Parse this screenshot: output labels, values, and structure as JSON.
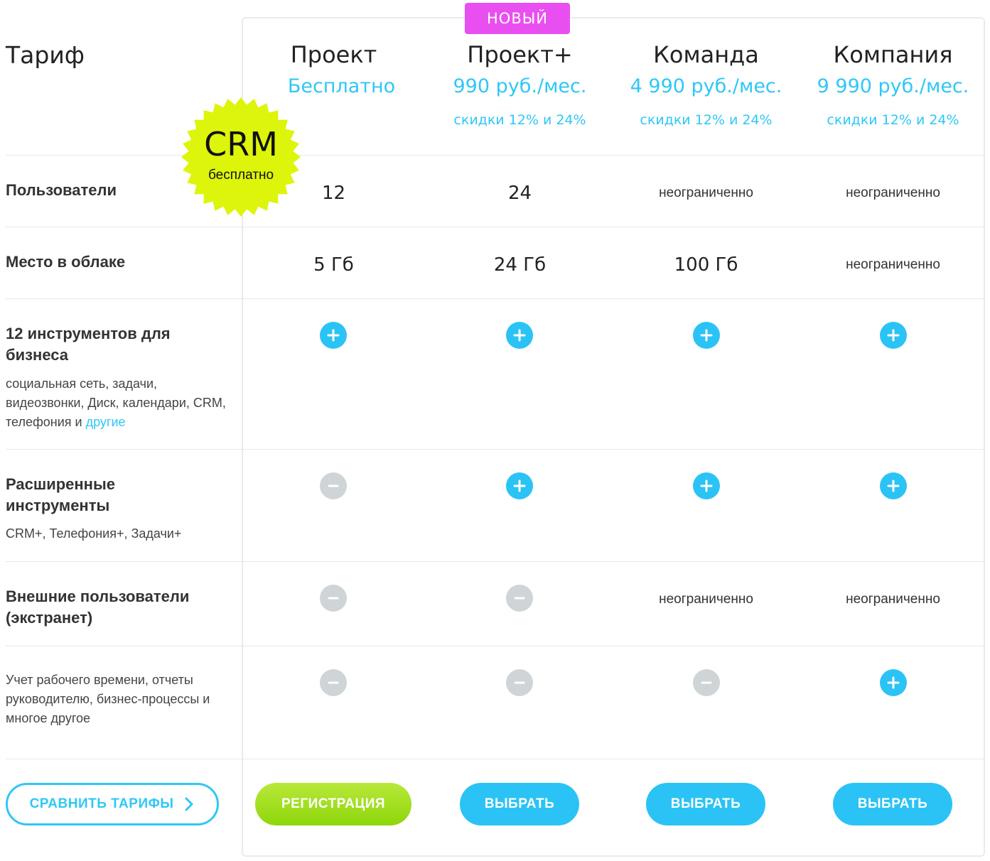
{
  "header": {
    "tariff_label": "Тариф"
  },
  "badges": {
    "new": "НОВЫЙ",
    "crm_title": "CRM",
    "crm_sub": "бесплатно",
    "crm_color": "#ddf50a"
  },
  "plans": [
    {
      "name": "Проект",
      "price": "Бесплатно",
      "discount": ""
    },
    {
      "name": "Проект+",
      "price": "990 руб./мес.",
      "discount": "скидки 12% и 24%"
    },
    {
      "name": "Команда",
      "price": "4 990 руб./мес.",
      "discount": "скидки 12% и 24%"
    },
    {
      "name": "Компания",
      "price": "9 990 руб./мес.",
      "discount": "скидки 12% и 24%"
    }
  ],
  "rows": {
    "users": {
      "title": "Пользователи",
      "values": [
        "12",
        "24",
        "неограниченно",
        "неограниченно"
      ]
    },
    "storage": {
      "title": "Место в облаке",
      "values": [
        "5 Гб",
        "24 Гб",
        "100 Гб",
        "неограниченно"
      ]
    },
    "tools": {
      "title": "12 инструментов для бизнеса",
      "desc": "социальная сеть, задачи, видеозвонки, Диск, календари, CRM, телефония и ",
      "link": "другие",
      "icons": [
        "plus-icon",
        "plus-icon",
        "plus-icon",
        "plus-icon"
      ]
    },
    "advanced": {
      "title": "Расширенные инструменты",
      "desc": "CRM+, Телефония+, Задачи+",
      "icons": [
        "minus-icon",
        "plus-icon",
        "plus-icon",
        "plus-icon"
      ]
    },
    "extranet": {
      "title": "Внешние пользователи (экстранет)",
      "values": [
        "",
        "",
        "неограниченно",
        "неограниченно"
      ],
      "icons": [
        "minus-icon",
        "minus-icon",
        "",
        ""
      ]
    },
    "worktime": {
      "desc": "Учет рабочего времени, отчеты руководителю, бизнес-процессы и многое другое",
      "icons": [
        "minus-icon",
        "minus-icon",
        "minus-icon",
        "plus-icon"
      ]
    }
  },
  "buttons": {
    "compare": "СРАВНИТЬ ТАРИФЫ",
    "register": "РЕГИСТРАЦИЯ",
    "select": "ВЫБРАТЬ"
  },
  "colors": {
    "accent": "#2fc7f7",
    "new_badge": "#e94ff0",
    "register": "#9ad81a",
    "disabled": "#cfd4d6"
  }
}
